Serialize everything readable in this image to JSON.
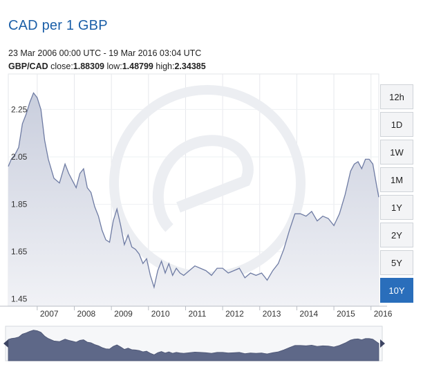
{
  "header": {
    "title": "CAD per 1 GBP",
    "range": "23 Mar 2006 00:00 UTC - 19 Mar 2016 03:04 UTC",
    "pair": "GBP/CAD",
    "close_label": "close:",
    "close_value": "1.88309",
    "low_label": "low:",
    "low_value": "1.48799",
    "high_label": "high:",
    "high_value": "2.34385"
  },
  "range_buttons": [
    {
      "label": "12h",
      "active": false
    },
    {
      "label": "1D",
      "active": false
    },
    {
      "label": "1W",
      "active": false
    },
    {
      "label": "1M",
      "active": false
    },
    {
      "label": "1Y",
      "active": false
    },
    {
      "label": "2Y",
      "active": false
    },
    {
      "label": "5Y",
      "active": false
    },
    {
      "label": "10Y",
      "active": true
    }
  ],
  "colors": {
    "line": "#6e7ba3",
    "fill_top": "#c9cedd",
    "fill_bottom": "#f1f2f6",
    "navigator": "#5e6888",
    "active_button": "#2a6ebb",
    "title": "#1b5fa8"
  },
  "chart_data": {
    "type": "area",
    "title": "CAD per 1 GBP",
    "series_name": "GBP/CAD",
    "ylim": [
      1.42,
      2.4
    ],
    "y_ticks": [
      1.45,
      1.65,
      1.85,
      2.05,
      2.25
    ],
    "y_tick_labels": [
      "1.45",
      "1.65",
      "1.85",
      "2.05",
      "2.25"
    ],
    "x_range": [
      2006.22,
      2016.21
    ],
    "x_ticks": [
      2007,
      2008,
      2009,
      2010,
      2011,
      2012,
      2013,
      2014,
      2015,
      2016
    ],
    "x_tick_labels": [
      "2007",
      "2008",
      "2009",
      "2010",
      "2011",
      "2012",
      "2013",
      "2014",
      "2015",
      "2016"
    ],
    "x": [
      2006.22,
      2006.3,
      2006.4,
      2006.5,
      2006.6,
      2006.7,
      2006.8,
      2006.9,
      2007.0,
      2007.1,
      2007.2,
      2007.3,
      2007.45,
      2007.6,
      2007.75,
      2007.85,
      2007.95,
      2008.05,
      2008.15,
      2008.25,
      2008.35,
      2008.45,
      2008.55,
      2008.65,
      2008.75,
      2008.85,
      2008.95,
      2009.05,
      2009.15,
      2009.25,
      2009.35,
      2009.45,
      2009.55,
      2009.65,
      2009.75,
      2009.85,
      2009.95,
      2010.05,
      2010.15,
      2010.25,
      2010.35,
      2010.45,
      2010.55,
      2010.65,
      2010.75,
      2010.85,
      2010.95,
      2011.1,
      2011.25,
      2011.4,
      2011.55,
      2011.7,
      2011.85,
      2012.0,
      2012.15,
      2012.3,
      2012.45,
      2012.6,
      2012.75,
      2012.9,
      2013.05,
      2013.2,
      2013.35,
      2013.5,
      2013.65,
      2013.8,
      2013.95,
      2014.1,
      2014.25,
      2014.4,
      2014.55,
      2014.7,
      2014.85,
      2015.0,
      2015.15,
      2015.3,
      2015.45,
      2015.55,
      2015.65,
      2015.75,
      2015.85,
      2015.95,
      2016.05,
      2016.15,
      2016.21
    ],
    "values": [
      2.01,
      2.04,
      2.06,
      2.09,
      2.19,
      2.23,
      2.28,
      2.32,
      2.3,
      2.25,
      2.12,
      2.04,
      1.96,
      1.94,
      2.02,
      1.98,
      1.95,
      1.92,
      1.98,
      2.0,
      1.92,
      1.9,
      1.84,
      1.8,
      1.74,
      1.7,
      1.69,
      1.78,
      1.83,
      1.76,
      1.68,
      1.72,
      1.67,
      1.66,
      1.64,
      1.6,
      1.62,
      1.55,
      1.5,
      1.57,
      1.61,
      1.56,
      1.6,
      1.55,
      1.58,
      1.56,
      1.55,
      1.57,
      1.59,
      1.58,
      1.57,
      1.55,
      1.58,
      1.58,
      1.56,
      1.57,
      1.58,
      1.54,
      1.56,
      1.55,
      1.56,
      1.53,
      1.57,
      1.6,
      1.66,
      1.74,
      1.81,
      1.81,
      1.8,
      1.82,
      1.78,
      1.8,
      1.79,
      1.76,
      1.81,
      1.89,
      1.99,
      2.02,
      2.03,
      2.0,
      2.04,
      2.04,
      2.02,
      1.93,
      1.88
    ],
    "nav_range": [
      1.3,
      2.45
    ]
  }
}
